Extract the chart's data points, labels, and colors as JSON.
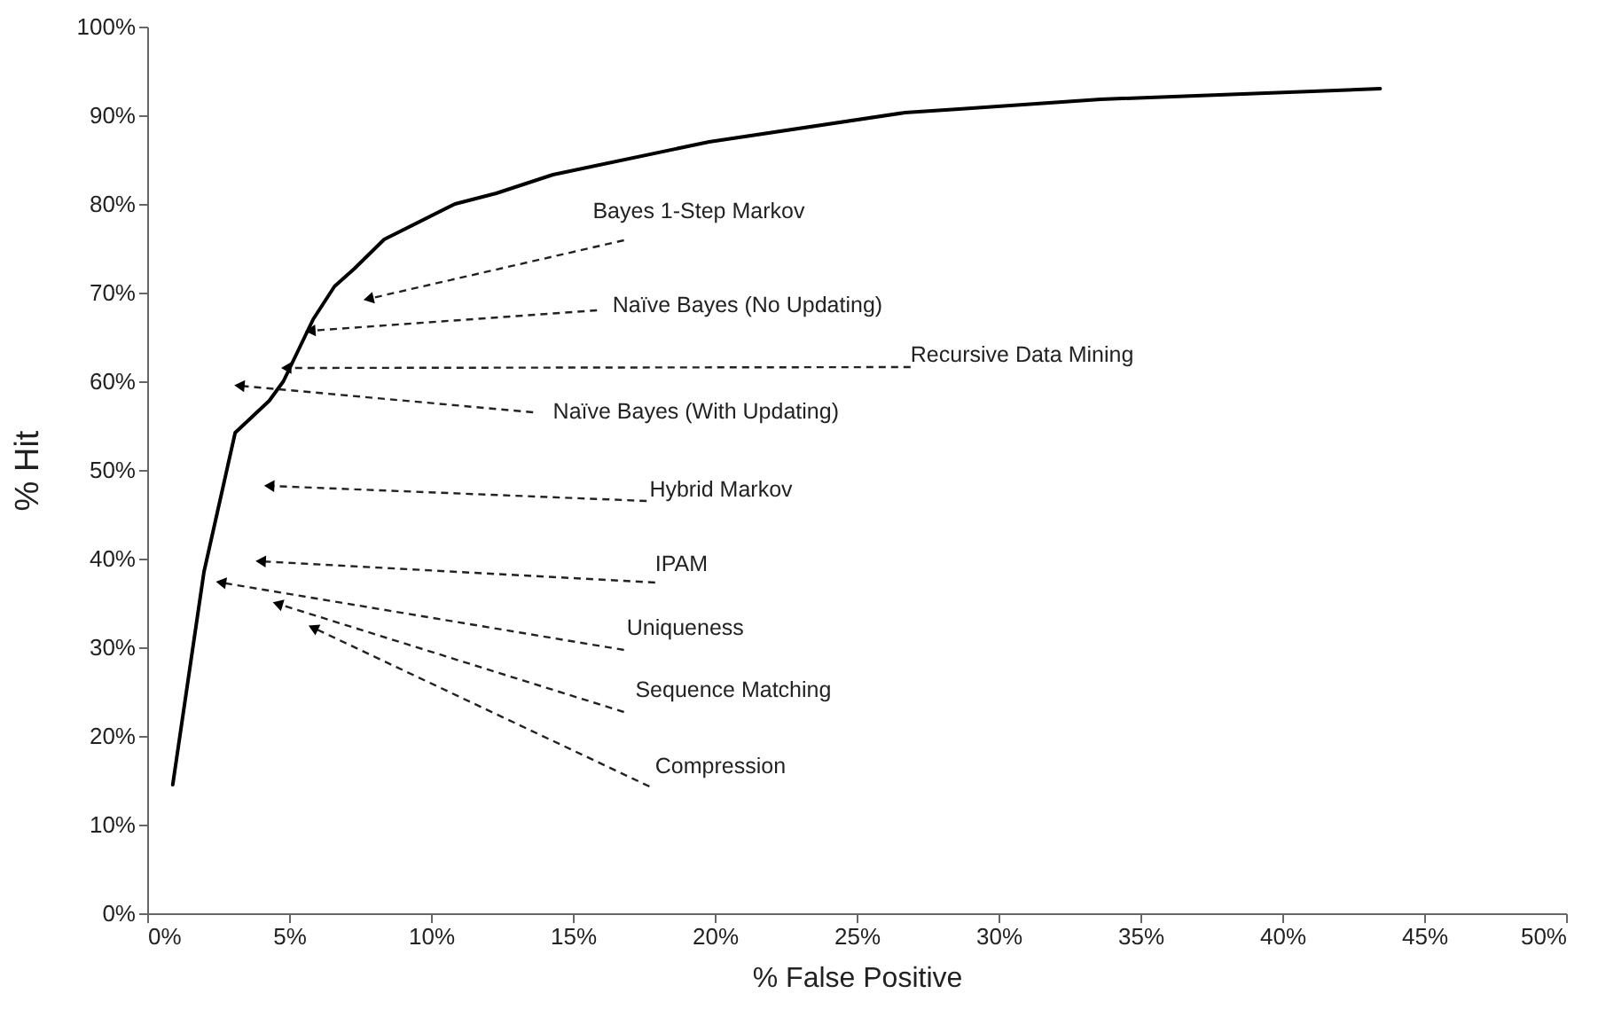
{
  "chart_data": {
    "type": "line",
    "xlabel": "% False Positive",
    "ylabel": "% Hit",
    "x": [
      0.9,
      2.0,
      3.1,
      3.7,
      4.3,
      4.8,
      5.85,
      6.6,
      7.3,
      8.35,
      10.85,
      12.3,
      14.3,
      19.8,
      26.7,
      28.6,
      33.6,
      43.45
    ],
    "series": [
      {
        "color": "#000000",
        "values": [
          14.5,
          38.5,
          54.2,
          56,
          57.8,
          60,
          67,
          70.7,
          72.7,
          76,
          80,
          81.2,
          83.3,
          87,
          90.3,
          90.7,
          91.8,
          93
        ]
      }
    ],
    "xlim": [
      0,
      50
    ],
    "xticks": [
      {
        "value": 0,
        "label": "0%"
      },
      {
        "value": 5,
        "label": "5%"
      },
      {
        "value": 10,
        "label": "10%"
      },
      {
        "value": 15,
        "label": "15%"
      },
      {
        "value": 20,
        "label": "20%"
      },
      {
        "value": 25,
        "label": "25%"
      },
      {
        "value": 30,
        "label": "30%"
      },
      {
        "value": 35,
        "label": "35%"
      },
      {
        "value": 40,
        "label": "40%"
      },
      {
        "value": 45,
        "label": "45%"
      },
      {
        "value": 50,
        "label": "50%"
      }
    ],
    "ylim": [
      0,
      100
    ],
    "yticks": [
      {
        "value": 0,
        "label": "0%"
      },
      {
        "value": 10,
        "label": "10%"
      },
      {
        "value": 20,
        "label": "20%"
      },
      {
        "value": 30,
        "label": "30%"
      },
      {
        "value": 40,
        "label": "40%"
      },
      {
        "value": 50,
        "label": "50%"
      },
      {
        "value": 60,
        "label": "60%"
      },
      {
        "value": 70,
        "label": "70%"
      },
      {
        "value": 80,
        "label": "80%"
      },
      {
        "value": 90,
        "label": "90%"
      },
      {
        "value": 100,
        "label": "100%"
      }
    ],
    "grid": false,
    "marker": "none",
    "line_style": "solid",
    "annotations": [
      {
        "text": "Bayes 1-Step Markov",
        "x": 7.8,
        "y": 69.3
      },
      {
        "text": "Naïve Bayes (No Updating)",
        "x": 5.75,
        "y": 65.7
      },
      {
        "text": "Recursive Data Mining",
        "x": 4.9,
        "y": 61.5
      },
      {
        "text": "Naïve Bayes (With Updating)",
        "x": 3.25,
        "y": 59.5
      },
      {
        "text": "Hybrid Markov",
        "x": 4.3,
        "y": 48.2
      },
      {
        "text": "IPAM",
        "x": 4.0,
        "y": 39.7
      },
      {
        "text": "Uniqueness",
        "x": 2.6,
        "y": 37.3
      },
      {
        "text": "Sequence Matching",
        "x": 4.6,
        "y": 34.9
      },
      {
        "text": "Compression",
        "x": 5.85,
        "y": 32.2
      }
    ]
  }
}
